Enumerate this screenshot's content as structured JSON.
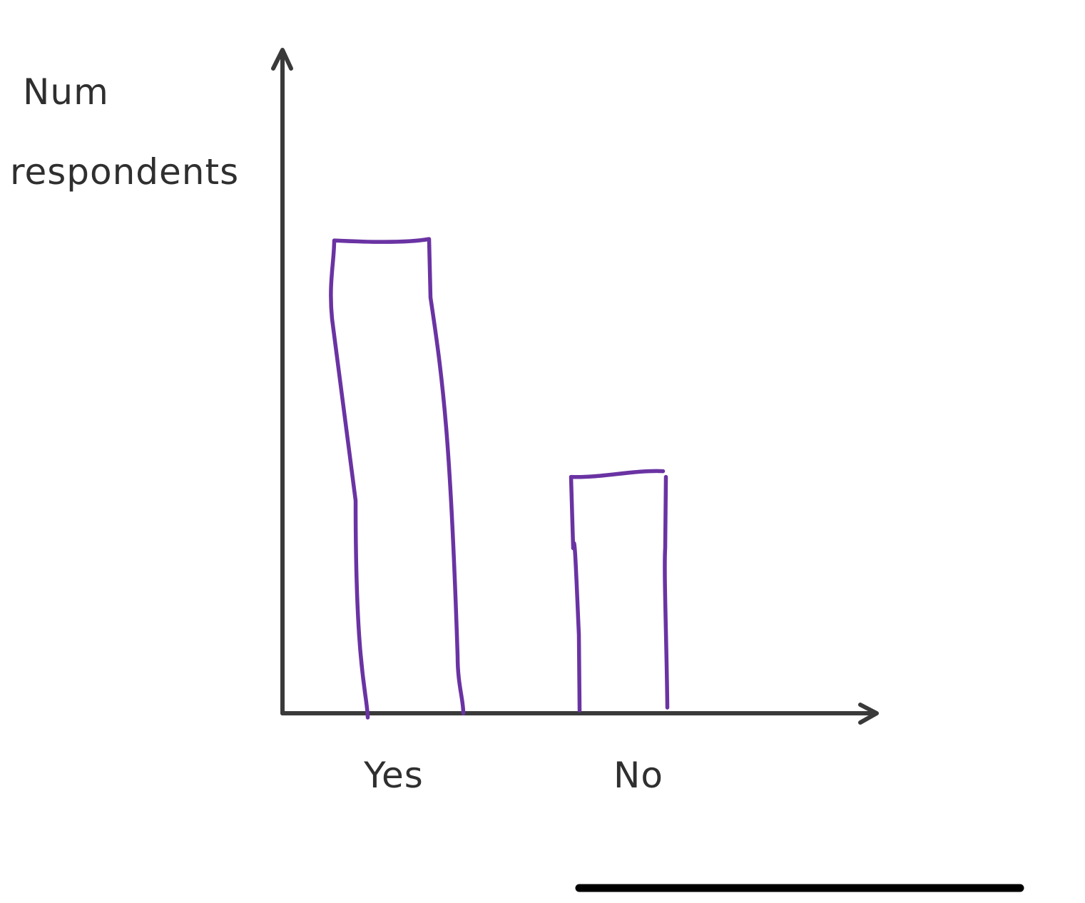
{
  "chart_data": {
    "type": "bar",
    "title": "",
    "ylabel": "Num respondents",
    "ylabel_lines": [
      "Num",
      "respondents"
    ],
    "xlabel": "",
    "categories": [
      "Yes",
      "No"
    ],
    "values": [
      10,
      5
    ],
    "ylim": [
      0,
      14
    ],
    "grid": false,
    "legend": "none",
    "colors": {
      "bar_outline": "#6a33a3",
      "axis": "#3a3a3a",
      "text": "#2f2f2f",
      "background": "#ffffff"
    }
  }
}
